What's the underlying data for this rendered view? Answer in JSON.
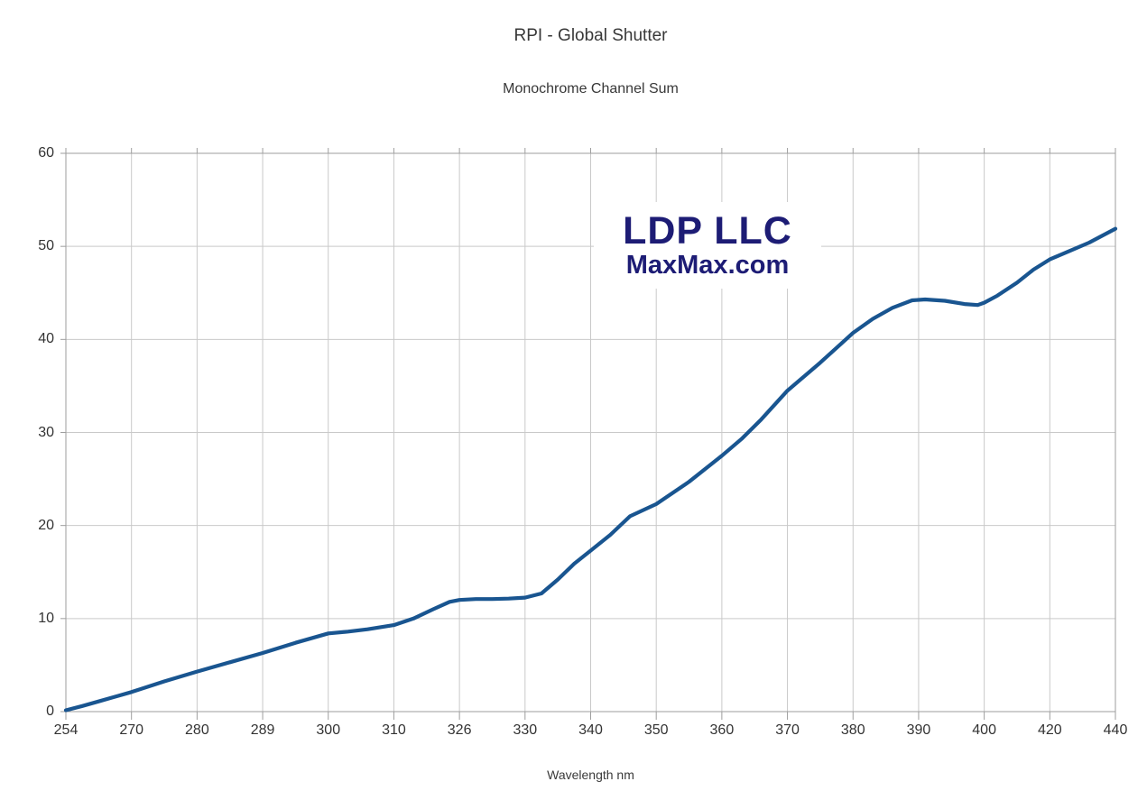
{
  "chart_data": {
    "type": "line",
    "title": "RPI - Global Shutter",
    "subtitle": "Monochrome Channel Sum",
    "xlabel": "Wavelength nm",
    "ylabel": "",
    "categories": [
      "254",
      "270",
      "280",
      "289",
      "300",
      "310",
      "326",
      "330",
      "340",
      "350",
      "360",
      "370",
      "380",
      "390",
      "400",
      "420",
      "440"
    ],
    "series": [
      {
        "name": "Monochrome Channel Sum",
        "values": [
          0.2,
          2.1,
          4.3,
          6.3,
          8.4,
          9.3,
          12.0,
          12.3,
          17.3,
          22.3,
          27.5,
          34.5,
          40.7,
          44.3,
          44.0,
          48.6,
          51.9
        ]
      }
    ],
    "curve_detail": [
      [
        0,
        0.15
      ],
      [
        0.25,
        0.6
      ],
      [
        0.5,
        1.1
      ],
      [
        0.75,
        1.6
      ],
      [
        1,
        2.1
      ],
      [
        1.5,
        3.25
      ],
      [
        2,
        4.3
      ],
      [
        2.5,
        5.3
      ],
      [
        3,
        6.3
      ],
      [
        3.5,
        7.4
      ],
      [
        4,
        8.4
      ],
      [
        4.3,
        8.6
      ],
      [
        4.6,
        8.85
      ],
      [
        5,
        9.3
      ],
      [
        5.3,
        10.0
      ],
      [
        5.6,
        11.0
      ],
      [
        5.85,
        11.8
      ],
      [
        6,
        12.0
      ],
      [
        6.25,
        12.1
      ],
      [
        6.5,
        12.1
      ],
      [
        6.75,
        12.15
      ],
      [
        7,
        12.25
      ],
      [
        7.25,
        12.7
      ],
      [
        7.5,
        14.2
      ],
      [
        7.75,
        15.9
      ],
      [
        8,
        17.3
      ],
      [
        8.3,
        19.0
      ],
      [
        8.6,
        21.0
      ],
      [
        9,
        22.3
      ],
      [
        9.5,
        24.7
      ],
      [
        10,
        27.5
      ],
      [
        10.3,
        29.3
      ],
      [
        10.6,
        31.4
      ],
      [
        11,
        34.5
      ],
      [
        11.5,
        37.5
      ],
      [
        12,
        40.7
      ],
      [
        12.3,
        42.2
      ],
      [
        12.6,
        43.4
      ],
      [
        12.9,
        44.2
      ],
      [
        13.1,
        44.3
      ],
      [
        13.4,
        44.15
      ],
      [
        13.7,
        43.8
      ],
      [
        13.9,
        43.7
      ],
      [
        14,
        43.95
      ],
      [
        14.2,
        44.7
      ],
      [
        14.5,
        46.1
      ],
      [
        14.75,
        47.5
      ],
      [
        15,
        48.6
      ],
      [
        15.3,
        49.5
      ],
      [
        15.6,
        50.4
      ],
      [
        16,
        51.9
      ]
    ],
    "y_ticks": [
      "0",
      "10",
      "20",
      "30",
      "40",
      "50",
      "60"
    ],
    "ylim": [
      0,
      60
    ],
    "grid": true,
    "legend_position": "none",
    "colors": {
      "line": "#195590",
      "grid": "#c9c9c9",
      "axis": "#9e9e9e",
      "text": "#333333",
      "watermark": "#1d1c75",
      "background": "#ffffff"
    },
    "watermark": {
      "line1": "LDP LLC",
      "line2": "MaxMax.com"
    }
  }
}
